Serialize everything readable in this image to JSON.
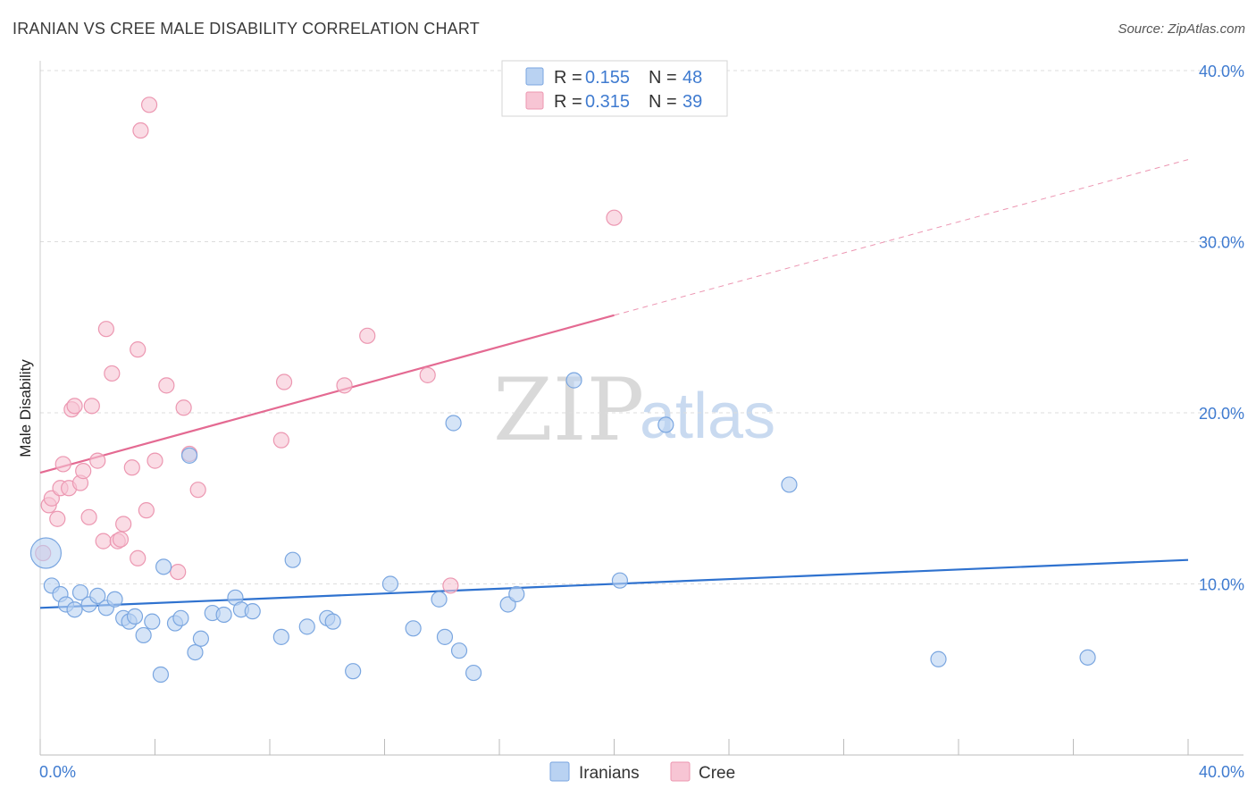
{
  "header": {
    "title": "IRANIAN VS CREE MALE DISABILITY CORRELATION CHART",
    "source": "Source: ZipAtlas.com"
  },
  "watermark": {
    "zip": "ZIP",
    "atlas": "atlas"
  },
  "legend": {
    "iranians": {
      "r_label": "R = ",
      "r_value": "0.155",
      "n_label": "N = ",
      "n_value": "48"
    },
    "cree": {
      "r_label": "R = ",
      "r_value": "0.315",
      "n_label": "N = ",
      "n_value": "39"
    }
  },
  "bottom_legend": {
    "iranians": "Iranians",
    "cree": "Cree"
  },
  "colors": {
    "iranians_fill": "#b9d2f2",
    "iranians_stroke": "#7aa6e0",
    "iranians_line": "#2f72cf",
    "cree_fill": "#f7c5d4",
    "cree_stroke": "#ec97b1",
    "cree_line": "#e46a92",
    "tick_text": "#3f7bd0",
    "grid": "#dddddd"
  },
  "chart_data": {
    "type": "scatter",
    "title": "IRANIAN VS CREE MALE DISABILITY CORRELATION CHART",
    "xlabel": "",
    "ylabel": "Male Disability",
    "xlim": [
      0,
      40
    ],
    "ylim": [
      0,
      40
    ],
    "x_tick_labels": [
      "0.0%",
      "40.0%"
    ],
    "y_ticks": [
      10,
      20,
      30,
      40
    ],
    "y_tick_labels": [
      "10.0%",
      "20.0%",
      "30.0%",
      "40.0%"
    ],
    "grid": true,
    "series": [
      {
        "name": "Iranians",
        "r": 0.155,
        "n": 48,
        "points": [
          {
            "x": 0.2,
            "y": 11.8,
            "big": true
          },
          {
            "x": 0.4,
            "y": 9.9
          },
          {
            "x": 0.7,
            "y": 9.4
          },
          {
            "x": 0.9,
            "y": 8.8
          },
          {
            "x": 1.2,
            "y": 8.5
          },
          {
            "x": 1.4,
            "y": 9.5
          },
          {
            "x": 1.7,
            "y": 8.8
          },
          {
            "x": 2.0,
            "y": 9.3
          },
          {
            "x": 2.3,
            "y": 8.6
          },
          {
            "x": 2.6,
            "y": 9.1
          },
          {
            "x": 2.9,
            "y": 8.0
          },
          {
            "x": 3.1,
            "y": 7.8
          },
          {
            "x": 3.3,
            "y": 8.1
          },
          {
            "x": 3.6,
            "y": 7.0
          },
          {
            "x": 3.9,
            "y": 7.8
          },
          {
            "x": 4.2,
            "y": 4.7
          },
          {
            "x": 4.3,
            "y": 11.0
          },
          {
            "x": 4.7,
            "y": 7.7
          },
          {
            "x": 4.9,
            "y": 8.0
          },
          {
            "x": 5.2,
            "y": 17.5
          },
          {
            "x": 5.4,
            "y": 6.0
          },
          {
            "x": 5.6,
            "y": 6.8
          },
          {
            "x": 6.0,
            "y": 8.3
          },
          {
            "x": 6.4,
            "y": 8.2
          },
          {
            "x": 6.8,
            "y": 9.2
          },
          {
            "x": 7.0,
            "y": 8.5
          },
          {
            "x": 7.4,
            "y": 8.4
          },
          {
            "x": 8.4,
            "y": 6.9
          },
          {
            "x": 8.8,
            "y": 11.4
          },
          {
            "x": 9.3,
            "y": 7.5
          },
          {
            "x": 10.0,
            "y": 8.0
          },
          {
            "x": 10.2,
            "y": 7.8
          },
          {
            "x": 10.9,
            "y": 4.9
          },
          {
            "x": 12.2,
            "y": 10.0
          },
          {
            "x": 13.0,
            "y": 7.4
          },
          {
            "x": 13.9,
            "y": 9.1
          },
          {
            "x": 14.1,
            "y": 6.9
          },
          {
            "x": 14.4,
            "y": 19.4
          },
          {
            "x": 14.6,
            "y": 6.1
          },
          {
            "x": 15.1,
            "y": 4.8
          },
          {
            "x": 16.3,
            "y": 8.8
          },
          {
            "x": 16.6,
            "y": 9.4
          },
          {
            "x": 18.6,
            "y": 21.9
          },
          {
            "x": 20.2,
            "y": 10.2
          },
          {
            "x": 21.8,
            "y": 19.3
          },
          {
            "x": 26.1,
            "y": 15.8
          },
          {
            "x": 31.3,
            "y": 5.6
          },
          {
            "x": 36.5,
            "y": 5.7
          }
        ],
        "trend": {
          "x0": 0,
          "y0": 8.6,
          "x1": 40,
          "y1": 11.4
        }
      },
      {
        "name": "Cree",
        "r": 0.315,
        "n": 39,
        "points": [
          {
            "x": 0.1,
            "y": 11.8
          },
          {
            "x": 0.3,
            "y": 14.6
          },
          {
            "x": 0.4,
            "y": 15.0
          },
          {
            "x": 0.6,
            "y": 13.8
          },
          {
            "x": 0.7,
            "y": 15.6
          },
          {
            "x": 0.8,
            "y": 17.0
          },
          {
            "x": 1.0,
            "y": 15.6
          },
          {
            "x": 1.1,
            "y": 20.2
          },
          {
            "x": 1.2,
            "y": 20.4
          },
          {
            "x": 1.4,
            "y": 15.9
          },
          {
            "x": 1.5,
            "y": 16.6
          },
          {
            "x": 1.7,
            "y": 13.9
          },
          {
            "x": 1.8,
            "y": 20.4
          },
          {
            "x": 2.0,
            "y": 17.2
          },
          {
            "x": 2.2,
            "y": 12.5
          },
          {
            "x": 2.3,
            "y": 24.9
          },
          {
            "x": 2.5,
            "y": 22.3
          },
          {
            "x": 2.7,
            "y": 12.5
          },
          {
            "x": 2.8,
            "y": 12.6
          },
          {
            "x": 2.9,
            "y": 13.5
          },
          {
            "x": 3.2,
            "y": 16.8
          },
          {
            "x": 3.4,
            "y": 11.5
          },
          {
            "x": 3.4,
            "y": 23.7
          },
          {
            "x": 3.7,
            "y": 14.3
          },
          {
            "x": 3.5,
            "y": 36.5
          },
          {
            "x": 3.8,
            "y": 38.0
          },
          {
            "x": 4.0,
            "y": 17.2
          },
          {
            "x": 4.4,
            "y": 21.6
          },
          {
            "x": 4.8,
            "y": 10.7
          },
          {
            "x": 5.0,
            "y": 20.3
          },
          {
            "x": 5.2,
            "y": 17.6
          },
          {
            "x": 5.5,
            "y": 15.5
          },
          {
            "x": 8.4,
            "y": 18.4
          },
          {
            "x": 8.5,
            "y": 21.8
          },
          {
            "x": 10.6,
            "y": 21.6
          },
          {
            "x": 11.4,
            "y": 24.5
          },
          {
            "x": 13.5,
            "y": 22.2
          },
          {
            "x": 14.3,
            "y": 9.9
          },
          {
            "x": 20.0,
            "y": 31.4
          }
        ],
        "trend": {
          "x0": 0,
          "y0": 16.5,
          "x1": 20,
          "y1": 25.7
        },
        "trend_dashed": {
          "x0": 20,
          "y0": 25.7,
          "x1": 40,
          "y1": 34.8
        }
      }
    ]
  }
}
